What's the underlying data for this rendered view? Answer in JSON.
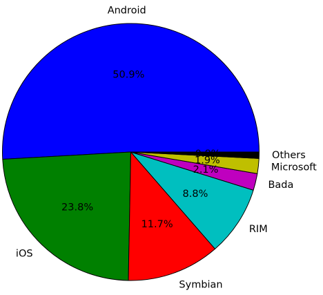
{
  "chart_data": {
    "type": "pie",
    "start_angle_deg": 0,
    "direction": "counterclockwise",
    "slices": [
      {
        "label": "Android",
        "value": 50.9,
        "pct_label": "50.9%",
        "color": "#0000ff"
      },
      {
        "label": "iOS",
        "value": 23.8,
        "pct_label": "23.8%",
        "color": "#008000"
      },
      {
        "label": "Symbian",
        "value": 11.7,
        "pct_label": "11.7%",
        "color": "#ff0000"
      },
      {
        "label": "RIM",
        "value": 8.8,
        "pct_label": "8.8%",
        "color": "#00bfbf"
      },
      {
        "label": "Bada",
        "value": 2.1,
        "pct_label": "2.1%",
        "color": "#bf00bf"
      },
      {
        "label": "Microsoft",
        "value": 1.9,
        "pct_label": "1.9%",
        "color": "#bfbf00"
      },
      {
        "label": "Others",
        "value": 0.8,
        "pct_label": "0.8%",
        "color": "#000000"
      }
    ]
  }
}
